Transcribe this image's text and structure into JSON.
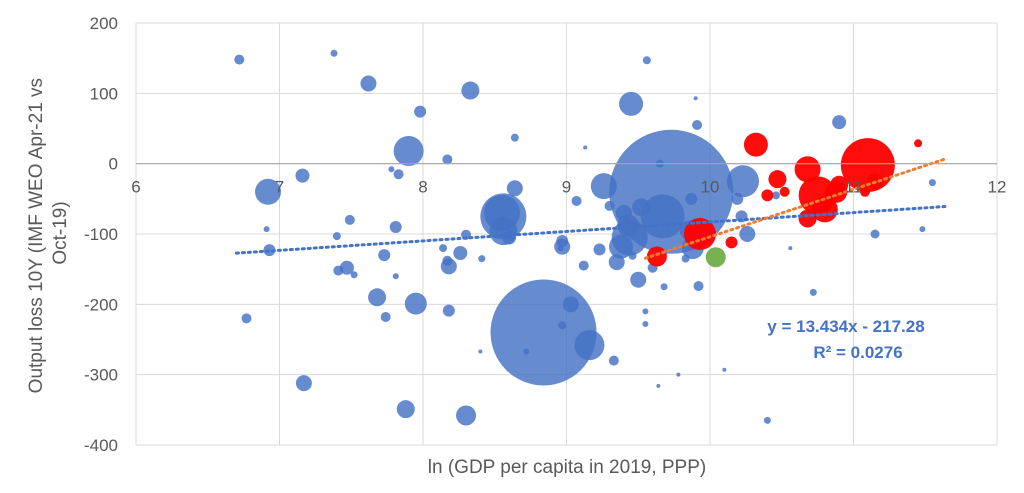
{
  "chart_data": {
    "type": "scatter",
    "subtype": "bubble",
    "xlabel": "ln (GDP per capita in 2019, PPP)",
    "ylabel_lines": [
      "Output loss 10Y  (IMF WEO Apr-21 vs",
      "Oct-19)"
    ],
    "xlim": [
      6,
      12
    ],
    "ylim": [
      -400,
      200
    ],
    "x_ticks": [
      6,
      7,
      8,
      9,
      10,
      11,
      12
    ],
    "y_ticks": [
      200,
      100,
      0,
      -100,
      -200,
      -300,
      -400
    ],
    "x_tick_labels": [
      "6",
      "7",
      "8",
      "9",
      "10",
      "11",
      "12"
    ],
    "y_tick_labels": [
      "200",
      "100",
      "0",
      "-100",
      "-200",
      "-300",
      "-400"
    ],
    "grid": true,
    "colors": {
      "blue": "#4472C4",
      "red": "#FF0000",
      "green": "#70AD47",
      "orange": "#ED7D31",
      "grid": "#D9D9D9",
      "axis": "#595959"
    },
    "series": [
      {
        "color_key": "blue",
        "points": [
          {
            "x": 6.72,
            "y": 148,
            "r": 5
          },
          {
            "x": 7.38,
            "y": 157,
            "r": 3.5
          },
          {
            "x": 7.62,
            "y": 114,
            "r": 8
          },
          {
            "x": 7.98,
            "y": 74,
            "r": 6
          },
          {
            "x": 8.33,
            "y": 104,
            "r": 9
          },
          {
            "x": 7.9,
            "y": 18,
            "r": 15
          },
          {
            "x": 8.17,
            "y": 6,
            "r": 5
          },
          {
            "x": 7.16,
            "y": -17,
            "r": 7
          },
          {
            "x": 7.83,
            "y": -15,
            "r": 5
          },
          {
            "x": 7.78,
            "y": -8,
            "r": 3
          },
          {
            "x": 6.92,
            "y": -40,
            "r": 13
          },
          {
            "x": 7.49,
            "y": -80,
            "r": 5
          },
          {
            "x": 7.4,
            "y": -103,
            "r": 4
          },
          {
            "x": 6.91,
            "y": -93,
            "r": 3
          },
          {
            "x": 6.93,
            "y": -123,
            "r": 6
          },
          {
            "x": 7.47,
            "y": -148,
            "r": 7
          },
          {
            "x": 7.41,
            "y": -152,
            "r": 5
          },
          {
            "x": 7.52,
            "y": -158,
            "r": 3.5
          },
          {
            "x": 7.73,
            "y": -130,
            "r": 6
          },
          {
            "x": 7.81,
            "y": -90,
            "r": 6
          },
          {
            "x": 7.81,
            "y": -160,
            "r": 3
          },
          {
            "x": 6.77,
            "y": -220,
            "r": 5
          },
          {
            "x": 7.68,
            "y": -190,
            "r": 9
          },
          {
            "x": 7.74,
            "y": -218,
            "r": 5
          },
          {
            "x": 7.95,
            "y": -199,
            "r": 11
          },
          {
            "x": 7.17,
            "y": -312,
            "r": 8
          },
          {
            "x": 7.88,
            "y": -349,
            "r": 9
          },
          {
            "x": 8.14,
            "y": -120,
            "r": 4
          },
          {
            "x": 8.18,
            "y": -146,
            "r": 8
          },
          {
            "x": 8.26,
            "y": -127,
            "r": 7
          },
          {
            "x": 8.17,
            "y": -138,
            "r": 5
          },
          {
            "x": 8.3,
            "y": -101,
            "r": 5
          },
          {
            "x": 8.18,
            "y": -209,
            "r": 6
          },
          {
            "x": 8.41,
            "y": -135,
            "r": 3.5
          },
          {
            "x": 8.56,
            "y": -75,
            "r": 23
          },
          {
            "x": 8.55,
            "y": -70,
            "r": 18
          },
          {
            "x": 8.56,
            "y": -96,
            "r": 14
          },
          {
            "x": 8.6,
            "y": -105,
            "r": 7
          },
          {
            "x": 8.64,
            "y": -35,
            "r": 8
          },
          {
            "x": 8.64,
            "y": 37,
            "r": 4
          },
          {
            "x": 8.84,
            "y": -240,
            "r": 53
          },
          {
            "x": 8.97,
            "y": -110,
            "r": 6
          },
          {
            "x": 8.97,
            "y": -118,
            "r": 8
          },
          {
            "x": 8.97,
            "y": -230,
            "r": 4
          },
          {
            "x": 9.03,
            "y": -200,
            "r": 8
          },
          {
            "x": 9.07,
            "y": -53,
            "r": 5
          },
          {
            "x": 9.12,
            "y": -145,
            "r": 5
          },
          {
            "x": 9.13,
            "y": 23,
            "r": 2
          },
          {
            "x": 9.16,
            "y": -258,
            "r": 15
          },
          {
            "x": 9.23,
            "y": -122,
            "r": 6
          },
          {
            "x": 9.26,
            "y": -32,
            "r": 13
          },
          {
            "x": 9.3,
            "y": -60,
            "r": 5
          },
          {
            "x": 9.33,
            "y": -280,
            "r": 5
          },
          {
            "x": 9.35,
            "y": -140,
            "r": 8
          },
          {
            "x": 9.38,
            "y": -118,
            "r": 12
          },
          {
            "x": 9.4,
            "y": -70,
            "r": 8
          },
          {
            "x": 9.43,
            "y": -88,
            "r": 11
          },
          {
            "x": 9.44,
            "y": -105,
            "r": 18
          },
          {
            "x": 9.45,
            "y": 85,
            "r": 12
          },
          {
            "x": 9.46,
            "y": -131,
            "r": 4
          },
          {
            "x": 9.5,
            "y": -165,
            "r": 8
          },
          {
            "x": 9.52,
            "y": -62,
            "r": 9
          },
          {
            "x": 9.55,
            "y": -210,
            "r": 3
          },
          {
            "x": 9.56,
            "y": 147,
            "r": 4
          },
          {
            "x": 9.6,
            "y": -148,
            "r": 5
          },
          {
            "x": 9.65,
            "y": 0,
            "r": 4
          },
          {
            "x": 9.68,
            "y": -175,
            "r": 3.5
          },
          {
            "x": 9.73,
            "y": -40,
            "r": 62
          },
          {
            "x": 9.67,
            "y": -75,
            "r": 22
          },
          {
            "x": 9.78,
            "y": -300,
            "r": 2
          },
          {
            "x": 9.83,
            "y": -135,
            "r": 4
          },
          {
            "x": 9.86,
            "y": -95,
            "r": 10
          },
          {
            "x": 9.87,
            "y": -50,
            "r": 6
          },
          {
            "x": 9.88,
            "y": -120,
            "r": 11
          },
          {
            "x": 9.9,
            "y": 93,
            "r": 2
          },
          {
            "x": 9.91,
            "y": 55,
            "r": 5
          },
          {
            "x": 9.92,
            "y": -174,
            "r": 5
          },
          {
            "x": 10.1,
            "y": -293,
            "r": 2
          },
          {
            "x": 10.19,
            "y": -50,
            "r": 6
          },
          {
            "x": 10.23,
            "y": -25,
            "r": 16
          },
          {
            "x": 10.22,
            "y": -75,
            "r": 6
          },
          {
            "x": 10.26,
            "y": -100,
            "r": 8
          },
          {
            "x": 10.4,
            "y": -365,
            "r": 3.5
          },
          {
            "x": 10.46,
            "y": -45,
            "r": 4
          },
          {
            "x": 10.56,
            "y": -120,
            "r": 2
          },
          {
            "x": 10.72,
            "y": -183,
            "r": 3.5
          },
          {
            "x": 10.9,
            "y": 59,
            "r": 7
          },
          {
            "x": 11.15,
            "y": -100,
            "r": 4.5
          },
          {
            "x": 11.55,
            "y": -27,
            "r": 3.5
          },
          {
            "x": 11.48,
            "y": -93,
            "r": 3
          },
          {
            "x": 8.96,
            "y": -120,
            "r": 3
          },
          {
            "x": 9.64,
            "y": -316,
            "r": 2
          },
          {
            "x": 9.55,
            "y": -228,
            "r": 3
          },
          {
            "x": 8.4,
            "y": -267,
            "r": 2
          },
          {
            "x": 8.72,
            "y": -267,
            "r": 3
          },
          {
            "x": 8.3,
            "y": -358,
            "r": 10
          }
        ]
      },
      {
        "color_key": "red",
        "points": [
          {
            "x": 10.32,
            "y": 27,
            "r": 12
          },
          {
            "x": 9.93,
            "y": -100,
            "r": 16
          },
          {
            "x": 9.63,
            "y": -132,
            "r": 10
          },
          {
            "x": 10.15,
            "y": -112,
            "r": 6
          },
          {
            "x": 10.4,
            "y": -45,
            "r": 6
          },
          {
            "x": 10.47,
            "y": -22,
            "r": 9
          },
          {
            "x": 10.52,
            "y": -40,
            "r": 5
          },
          {
            "x": 10.68,
            "y": -8,
            "r": 13
          },
          {
            "x": 10.68,
            "y": -78,
            "r": 9
          },
          {
            "x": 10.75,
            "y": -45,
            "r": 19
          },
          {
            "x": 10.8,
            "y": -65,
            "r": 13
          },
          {
            "x": 10.88,
            "y": -40,
            "r": 11
          },
          {
            "x": 10.9,
            "y": -30,
            "r": 9
          },
          {
            "x": 11.1,
            "y": -2,
            "r": 27
          },
          {
            "x": 11.15,
            "y": -25,
            "r": 8
          },
          {
            "x": 11.45,
            "y": 29,
            "r": 4
          },
          {
            "x": 11.08,
            "y": -40,
            "r": 5
          }
        ]
      },
      {
        "color_key": "green",
        "points": [
          {
            "x": 10.04,
            "y": -133,
            "r": 10
          }
        ]
      }
    ],
    "trendlines": [
      {
        "color_key": "blue",
        "slope": 13.434,
        "intercept": -217.28,
        "x_from": 6.7,
        "x_to": 11.65
      },
      {
        "color_key": "orange",
        "slope": 67.5,
        "intercept": -779,
        "x_from": 9.55,
        "x_to": 11.65
      }
    ],
    "equation_text": "y = 13.434x - 217.28",
    "r2_text": "R² = 0.0276"
  }
}
